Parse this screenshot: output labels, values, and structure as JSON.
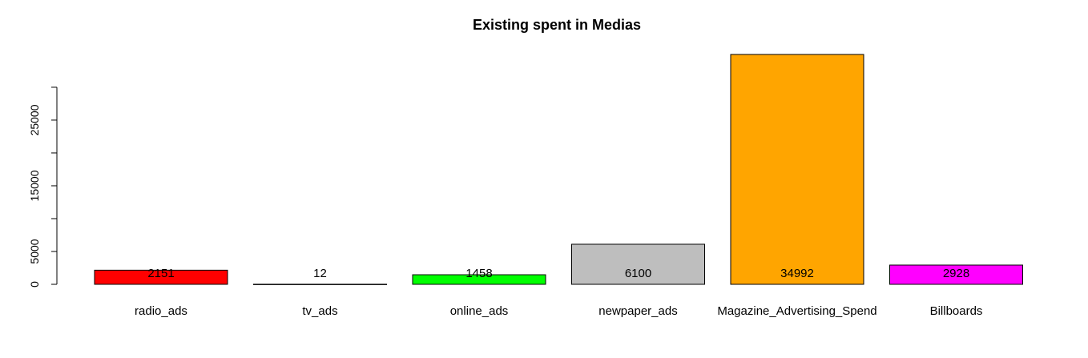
{
  "chart_data": {
    "type": "bar",
    "title": "Existing spent in Medias",
    "xlabel": "",
    "ylabel": "",
    "categories": [
      "radio_ads",
      "tv_ads",
      "online_ads",
      "newpaper_ads",
      "Magazine_Advertising_Spend",
      "Billboards"
    ],
    "values": [
      2151,
      12,
      1458,
      6100,
      34992,
      2928
    ],
    "colors": [
      "#ff0000",
      "#ffffff",
      "#00ff00",
      "#bebebe",
      "#ffa500",
      "#ff00ff"
    ],
    "y_ticks": [
      0,
      5000,
      10000,
      15000,
      20000,
      25000,
      30000
    ],
    "y_tick_labels": [
      "0",
      "5000",
      "",
      "15000",
      "",
      "25000",
      ""
    ],
    "ylim": [
      0,
      34992
    ],
    "grid": false,
    "legend": "none"
  }
}
